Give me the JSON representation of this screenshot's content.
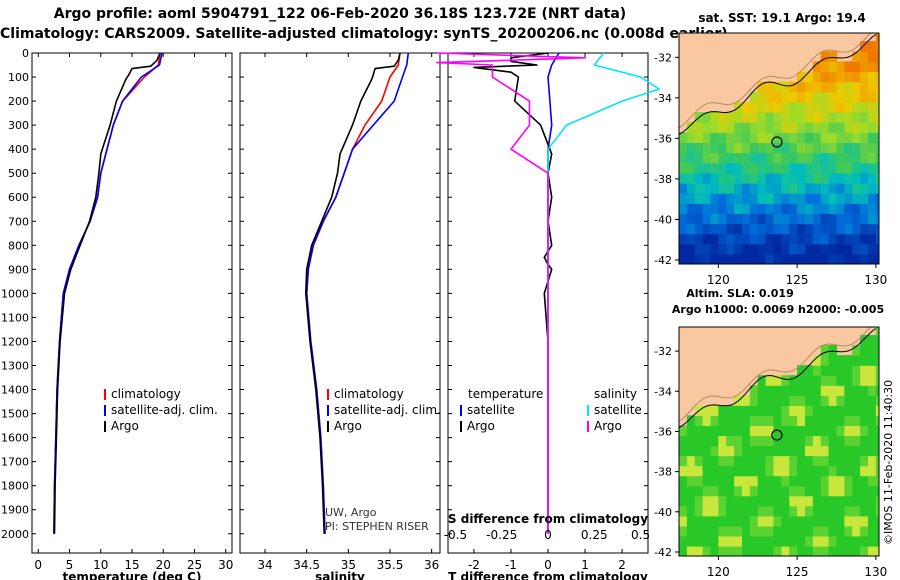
{
  "title_line1": "Argo profile: aoml 5904791_122 06-Feb-2020 36.18S 123.72E (NRT data)",
  "title_line2": "Climatology: CARS2009. Satellite-adjusted climatology: synTS_20200206.nc (0.008d earlier)",
  "colors": {
    "climatology": "#ff0000",
    "satellite_adj": "#0000ff",
    "argo": "#000000",
    "s_satellite": "#00e5ff",
    "s_argo": "#ff00ff",
    "land": "#fac8a0"
  },
  "chart_data": [
    {
      "type": "line",
      "id": "temperature",
      "xlabel": "temperature (deg C)",
      "xlim": [
        -1,
        31
      ],
      "xticks": [
        0,
        5,
        10,
        15,
        20,
        25,
        30
      ],
      "ylim": [
        2080,
        0
      ],
      "yticks": [
        0,
        100,
        200,
        300,
        400,
        500,
        600,
        700,
        800,
        900,
        1000,
        1100,
        1200,
        1300,
        1400,
        1500,
        1600,
        1700,
        1800,
        1900,
        2000
      ],
      "legend": [
        "climatology",
        "satellite-adj. clim.",
        "Argo"
      ],
      "series": [
        {
          "name": "climatology",
          "x": [
            19.5,
            19.2,
            17.0,
            13.5,
            12.0,
            11.0,
            10.0,
            9.5,
            8.3,
            6.5,
            5.0,
            4.0,
            3.4,
            3.0,
            2.8,
            2.6,
            2.5
          ],
          "y": [
            0,
            50,
            100,
            200,
            300,
            400,
            500,
            600,
            700,
            800,
            900,
            1000,
            1200,
            1400,
            1600,
            1800,
            2000
          ]
        },
        {
          "name": "satellite-adj. clim.",
          "x": [
            19.8,
            19.4,
            16.5,
            13.5,
            12.0,
            11.0,
            10.0,
            9.5,
            8.3,
            6.5,
            5.0,
            4.0,
            3.4,
            3.0,
            2.8,
            2.6,
            2.5
          ],
          "y": [
            0,
            50,
            100,
            200,
            300,
            400,
            500,
            600,
            700,
            800,
            900,
            1000,
            1200,
            1400,
            1600,
            1800,
            2000
          ]
        },
        {
          "name": "Argo",
          "x": [
            19.5,
            19.0,
            18.0,
            15.0,
            14.5,
            14.0,
            12.5,
            11.5,
            10.5,
            10.0,
            9.7,
            9.2,
            8.2,
            6.7,
            5.2,
            4.2,
            3.5,
            3.1,
            2.9,
            2.7,
            2.6
          ],
          "y": [
            0,
            30,
            55,
            65,
            90,
            110,
            200,
            300,
            380,
            420,
            500,
            600,
            700,
            800,
            900,
            1000,
            1200,
            1400,
            1600,
            1800,
            2000
          ]
        }
      ]
    },
    {
      "type": "line",
      "id": "salinity",
      "xlabel": "salinity",
      "xlim": [
        33.7,
        36.1
      ],
      "xticks": [
        34,
        34.5,
        35,
        35.5,
        36
      ],
      "ylim": [
        2080,
        0
      ],
      "legend": [
        "climatology",
        "satellite-adj. clim.",
        "Argo"
      ],
      "annotations": [
        "UW, Argo",
        "PI: STEPHEN RISER"
      ],
      "series": [
        {
          "name": "climatology",
          "x": [
            35.62,
            35.6,
            35.5,
            35.4,
            35.2,
            35.05,
            34.95,
            34.85,
            34.7,
            34.58,
            34.52,
            34.5,
            34.55,
            34.62,
            34.67,
            34.7,
            34.72
          ],
          "y": [
            0,
            50,
            100,
            200,
            300,
            400,
            500,
            600,
            700,
            800,
            900,
            1000,
            1200,
            1400,
            1600,
            1800,
            2000
          ]
        },
        {
          "name": "satellite-adj. clim.",
          "x": [
            35.72,
            35.7,
            35.65,
            35.55,
            35.3,
            35.05,
            34.95,
            34.85,
            34.7,
            34.58,
            34.52,
            34.5,
            34.55,
            34.62,
            34.67,
            34.7,
            34.72
          ],
          "y": [
            0,
            50,
            100,
            200,
            300,
            400,
            500,
            600,
            700,
            800,
            900,
            1000,
            1200,
            1400,
            1600,
            1800,
            2000
          ]
        },
        {
          "name": "Argo",
          "x": [
            35.62,
            35.6,
            35.55,
            35.32,
            35.3,
            35.28,
            35.15,
            35.05,
            34.95,
            34.9,
            34.87,
            34.8,
            34.68,
            34.56,
            34.5,
            34.49,
            34.54,
            34.61,
            34.66,
            34.69,
            34.71
          ],
          "y": [
            0,
            30,
            55,
            65,
            90,
            110,
            200,
            300,
            380,
            420,
            500,
            600,
            700,
            800,
            900,
            1000,
            1200,
            1400,
            1600,
            1800,
            2000
          ]
        }
      ]
    },
    {
      "type": "line",
      "id": "difference",
      "xlabel": "T difference from climatology",
      "xlabel_top": "S difference from climatology",
      "xlim": [
        -2.7,
        2.7
      ],
      "xticks": [
        -2,
        -1,
        0,
        1,
        2
      ],
      "s_xticks": [
        "-0.5",
        "-0.25",
        "0",
        "0.25",
        "0.5"
      ],
      "s_xticks_values": [
        -0.5,
        -0.25,
        0,
        0.25,
        0.5
      ],
      "ylim": [
        2080,
        0
      ],
      "legend_left_title": "temperature",
      "legend_right_title": "salinity",
      "legend": [
        "satellite",
        "Argo",
        "satellite",
        "Argo"
      ],
      "series": [
        {
          "name": "T satellite",
          "x": [
            0.3,
            0.1,
            0.0,
            0.05,
            0.1,
            0.0,
            0.0,
            0.0,
            0.0,
            0.0,
            0.0,
            0.0,
            0.0,
            0.0,
            0.0
          ],
          "y": [
            0,
            50,
            100,
            200,
            300,
            400,
            500,
            600,
            700,
            800,
            1000,
            1200,
            1500,
            1800,
            2000
          ]
        },
        {
          "name": "T Argo",
          "x": [
            0.0,
            -1.0,
            -1.0,
            -0.3,
            -2.0,
            -1.5,
            -1.0,
            -0.8,
            -0.9,
            -0.2,
            0.0,
            0.1,
            0.0,
            0.1,
            0.0,
            0.1,
            -0.1,
            0.0,
            0.1,
            0.0,
            -0.1,
            0.0,
            0.0,
            0.0,
            0.0
          ],
          "y": [
            0,
            20,
            35,
            50,
            60,
            70,
            80,
            100,
            200,
            300,
            380,
            420,
            500,
            600,
            700,
            800,
            850,
            880,
            900,
            950,
            1000,
            1200,
            1500,
            1800,
            2000
          ]
        },
        {
          "name": "S satellite",
          "x": [
            0.3,
            0.25,
            0.5,
            0.6,
            0.4,
            0.1,
            0.0,
            0.0,
            0.0,
            0.0
          ],
          "y": [
            0,
            50,
            100,
            150,
            200,
            300,
            400,
            600,
            1000,
            2000
          ]
        },
        {
          "name": "S Argo",
          "x": [
            -0.6,
            0.2,
            -0.6,
            -0.3,
            -0.3,
            -0.1,
            -0.1,
            -0.2,
            0.0,
            0.0,
            0.0,
            0.0
          ],
          "y": [
            0,
            20,
            40,
            50,
            100,
            200,
            300,
            400,
            500,
            700,
            1000,
            2000
          ]
        }
      ]
    }
  ],
  "maps": {
    "top_title": "sat. SST: 19.1 Argo: 19.4",
    "bottom_title_line1": "Altim. SLA: 0.019",
    "bottom_title_line2": "Argo h1000: 0.0069 h2000: -0.005",
    "xlim": [
      117.5,
      130.2
    ],
    "ylim": [
      -42.2,
      -30.8
    ],
    "xticks": [
      120,
      125,
      130
    ],
    "yticks": [
      -32,
      -34,
      -36,
      -38,
      -40,
      -42
    ],
    "profile_lon": 123.72,
    "profile_lat": -36.18,
    "watermark": "©IMOS 11-Feb-2020 11:40:30"
  }
}
